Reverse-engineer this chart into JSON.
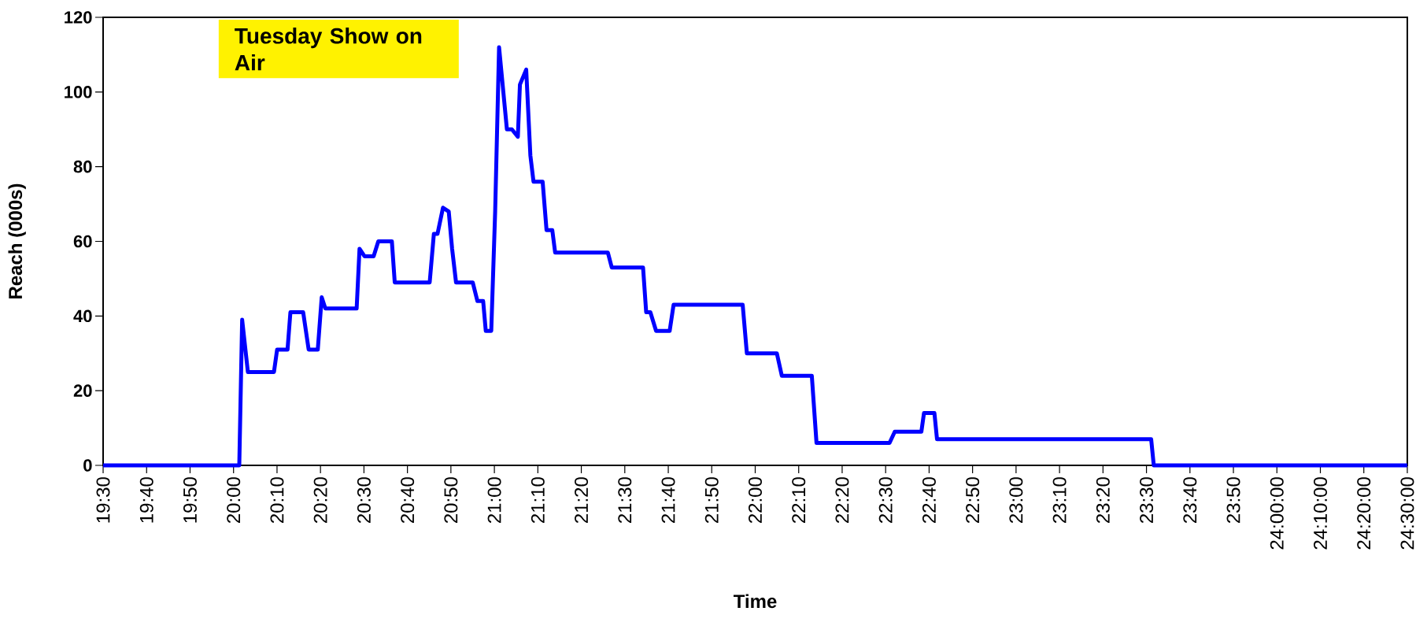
{
  "chart_data": {
    "type": "line",
    "xlabel": "Time",
    "ylabel": "Reach (000s)",
    "annotations": [
      "Tuesday Show on Air"
    ],
    "x": [
      19.5,
      20.022,
      20.033,
      20.055,
      20.155,
      20.167,
      20.207,
      20.218,
      20.267,
      20.288,
      20.323,
      20.338,
      20.352,
      20.472,
      20.483,
      20.502,
      20.537,
      20.555,
      20.607,
      20.618,
      20.752,
      20.768,
      20.782,
      20.803,
      20.825,
      20.838,
      20.853,
      20.917,
      20.935,
      20.957,
      20.967,
      20.988,
      21.003,
      21.018,
      21.048,
      21.067,
      21.09,
      21.098,
      21.122,
      21.138,
      21.15,
      21.185,
      21.2,
      21.222,
      21.233,
      21.435,
      21.45,
      21.57,
      21.582,
      21.598,
      21.62,
      21.672,
      21.687,
      21.952,
      21.968,
      22.083,
      22.102,
      22.217,
      22.235,
      22.515,
      22.535,
      22.637,
      22.647,
      22.687,
      22.697,
      23.518,
      23.528,
      24.5
    ],
    "series": [
      {
        "color": "#0000ff",
        "line_style": "solid",
        "values": [
          0,
          0,
          39,
          25,
          25,
          31,
          31,
          41,
          41,
          31,
          31,
          45,
          42,
          42,
          58,
          56,
          56,
          60,
          60,
          49,
          49,
          62,
          62,
          69,
          68,
          58,
          49,
          49,
          44,
          44,
          36,
          36,
          68,
          112,
          90,
          90,
          88,
          102,
          106,
          83,
          76,
          76,
          63,
          63,
          57,
          57,
          53,
          53,
          41,
          41,
          36,
          36,
          43,
          43,
          30,
          30,
          24,
          24,
          6,
          6,
          9,
          9,
          14,
          14,
          7,
          7,
          0,
          0
        ]
      }
    ],
    "xlim": [
      19.5,
      24.5
    ],
    "ylim": [
      0,
      120
    ],
    "yticks": [
      0,
      20,
      40,
      60,
      80,
      100,
      120
    ],
    "xticks": [
      {
        "value": 19.5,
        "label": "19:30"
      },
      {
        "value": 19.6667,
        "label": "19:40"
      },
      {
        "value": 19.8333,
        "label": "19:50"
      },
      {
        "value": 20.0,
        "label": "20:00"
      },
      {
        "value": 20.1667,
        "label": "20:10"
      },
      {
        "value": 20.3333,
        "label": "20:20"
      },
      {
        "value": 20.5,
        "label": "20:30"
      },
      {
        "value": 20.6667,
        "label": "20:40"
      },
      {
        "value": 20.8333,
        "label": "20:50"
      },
      {
        "value": 21.0,
        "label": "21:00"
      },
      {
        "value": 21.1667,
        "label": "21:10"
      },
      {
        "value": 21.3333,
        "label": "21:20"
      },
      {
        "value": 21.5,
        "label": "21:30"
      },
      {
        "value": 21.6667,
        "label": "21:40"
      },
      {
        "value": 21.8333,
        "label": "21:50"
      },
      {
        "value": 22.0,
        "label": "22:00"
      },
      {
        "value": 22.1667,
        "label": "22:10"
      },
      {
        "value": 22.3333,
        "label": "22:20"
      },
      {
        "value": 22.5,
        "label": "22:30"
      },
      {
        "value": 22.6667,
        "label": "22:40"
      },
      {
        "value": 22.8333,
        "label": "22:50"
      },
      {
        "value": 23.0,
        "label": "23:00"
      },
      {
        "value": 23.1667,
        "label": "23:10"
      },
      {
        "value": 23.3333,
        "label": "23:20"
      },
      {
        "value": 23.5,
        "label": "23:30"
      },
      {
        "value": 23.6667,
        "label": "23:40"
      },
      {
        "value": 23.8333,
        "label": "23:50"
      },
      {
        "value": 24.0,
        "label": "24:00:00"
      },
      {
        "value": 24.1667,
        "label": "24:10:00"
      },
      {
        "value": 24.3333,
        "label": "24:20:00"
      },
      {
        "value": 24.5,
        "label": "24:30:00"
      }
    ],
    "grid": false,
    "marker": "none"
  }
}
